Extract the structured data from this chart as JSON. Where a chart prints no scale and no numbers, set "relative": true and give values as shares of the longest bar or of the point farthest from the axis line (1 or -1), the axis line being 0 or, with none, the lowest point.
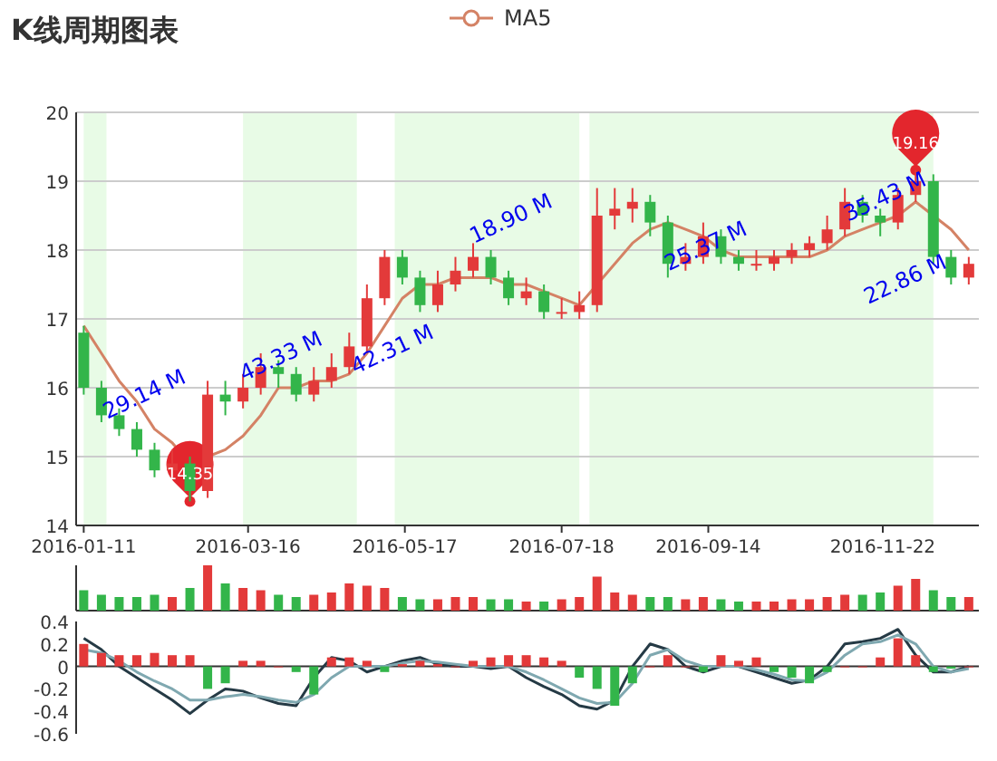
{
  "chart_data": [
    {
      "type": "candlestick",
      "title": "K线周期图表",
      "legend": "top",
      "grid": "y",
      "x": [
        "2016-01-11",
        "2016-01-18",
        "2016-01-25",
        "2016-02-01",
        "2016-02-08",
        "2016-02-15",
        "2016-02-22",
        "2016-02-29",
        "2016-03-07",
        "2016-03-14",
        "2016-03-21",
        "2016-03-28",
        "2016-04-04",
        "2016-04-11",
        "2016-04-18",
        "2016-04-25",
        "2016-05-02",
        "2016-05-09",
        "2016-05-16",
        "2016-05-23",
        "2016-05-30",
        "2016-06-06",
        "2016-06-13",
        "2016-06-20",
        "2016-06-27",
        "2016-07-04",
        "2016-07-11",
        "2016-07-18",
        "2016-07-25",
        "2016-08-01",
        "2016-08-08",
        "2016-08-15",
        "2016-08-22",
        "2016-08-29",
        "2016-09-05",
        "2016-09-12",
        "2016-09-19",
        "2016-09-26",
        "2016-10-03",
        "2016-10-10",
        "2016-10-17",
        "2016-10-24",
        "2016-10-31",
        "2016-11-07",
        "2016-11-14",
        "2016-11-21",
        "2016-11-28",
        "2016-12-05",
        "2016-12-12",
        "2016-12-19",
        "2016-12-26"
      ],
      "ohlc": [
        [
          16.8,
          16.9,
          15.9,
          16.0
        ],
        [
          16.0,
          16.1,
          15.5,
          15.6
        ],
        [
          15.6,
          15.7,
          15.3,
          15.4
        ],
        [
          15.4,
          15.5,
          15.0,
          15.1
        ],
        [
          15.1,
          15.2,
          14.7,
          14.8
        ],
        [
          14.8,
          15.1,
          14.7,
          14.9
        ],
        [
          14.9,
          15.0,
          14.35,
          14.5
        ],
        [
          14.5,
          16.1,
          14.4,
          15.9
        ],
        [
          15.9,
          16.1,
          15.6,
          15.8
        ],
        [
          15.8,
          16.2,
          15.7,
          16.0
        ],
        [
          16.0,
          16.5,
          15.9,
          16.3
        ],
        [
          16.3,
          16.4,
          16.0,
          16.2
        ],
        [
          16.2,
          16.3,
          15.8,
          15.9
        ],
        [
          15.9,
          16.3,
          15.8,
          16.1
        ],
        [
          16.1,
          16.5,
          16.0,
          16.3
        ],
        [
          16.3,
          16.8,
          16.2,
          16.6
        ],
        [
          16.6,
          17.5,
          16.5,
          17.3
        ],
        [
          17.3,
          18.0,
          17.2,
          17.9
        ],
        [
          17.9,
          18.0,
          17.5,
          17.6
        ],
        [
          17.6,
          17.7,
          17.1,
          17.2
        ],
        [
          17.2,
          17.7,
          17.1,
          17.5
        ],
        [
          17.5,
          17.9,
          17.4,
          17.7
        ],
        [
          17.7,
          18.1,
          17.6,
          17.9
        ],
        [
          17.9,
          18.0,
          17.5,
          17.6
        ],
        [
          17.6,
          17.7,
          17.2,
          17.3
        ],
        [
          17.3,
          17.6,
          17.2,
          17.4
        ],
        [
          17.4,
          17.5,
          17.0,
          17.1
        ],
        [
          17.1,
          17.3,
          17.0,
          17.1
        ],
        [
          17.1,
          17.4,
          17.0,
          17.2
        ],
        [
          17.2,
          18.9,
          17.1,
          18.5
        ],
        [
          18.5,
          18.9,
          18.3,
          18.6
        ],
        [
          18.6,
          18.9,
          18.4,
          18.7
        ],
        [
          18.7,
          18.8,
          18.2,
          18.4
        ],
        [
          18.4,
          18.5,
          17.6,
          17.8
        ],
        [
          17.8,
          18.1,
          17.7,
          17.9
        ],
        [
          17.9,
          18.4,
          17.8,
          18.2
        ],
        [
          18.2,
          18.3,
          17.8,
          17.9
        ],
        [
          17.9,
          18.0,
          17.7,
          17.8
        ],
        [
          17.8,
          18.0,
          17.7,
          17.8
        ],
        [
          17.8,
          18.0,
          17.7,
          17.9
        ],
        [
          17.9,
          18.1,
          17.8,
          18.0
        ],
        [
          18.0,
          18.2,
          17.9,
          18.1
        ],
        [
          18.1,
          18.5,
          18.0,
          18.3
        ],
        [
          18.3,
          18.9,
          18.2,
          18.7
        ],
        [
          18.7,
          18.8,
          18.4,
          18.5
        ],
        [
          18.5,
          18.6,
          18.2,
          18.4
        ],
        [
          18.4,
          18.9,
          18.3,
          18.8
        ],
        [
          18.8,
          19.16,
          18.7,
          19.0
        ],
        [
          19.0,
          19.1,
          17.8,
          17.9
        ],
        [
          17.9,
          18.0,
          17.5,
          17.6
        ],
        [
          17.6,
          17.9,
          17.5,
          17.8
        ]
      ],
      "series": [
        {
          "name": "MA5",
          "type": "line",
          "color": "#d48265",
          "values": [
            16.9,
            16.5,
            16.1,
            15.8,
            15.4,
            15.2,
            14.9,
            15.0,
            15.1,
            15.3,
            15.6,
            16.0,
            16.0,
            16.1,
            16.1,
            16.2,
            16.5,
            16.9,
            17.3,
            17.5,
            17.5,
            17.6,
            17.6,
            17.6,
            17.5,
            17.5,
            17.4,
            17.3,
            17.2,
            17.5,
            17.8,
            18.1,
            18.3,
            18.4,
            18.3,
            18.2,
            18.0,
            17.9,
            17.9,
            17.9,
            17.9,
            17.9,
            18.0,
            18.2,
            18.3,
            18.4,
            18.5,
            18.7,
            18.5,
            18.3,
            18.0
          ]
        },
        {
          "type": "scatter",
          "color": "#e3262d",
          "x": [
            "2016-02-22",
            "2016-12-05"
          ],
          "values": [
            14.35,
            19.16
          ],
          "value_labels": [
            "14.35",
            "19.16"
          ]
        }
      ],
      "xlim": [
        "2016-01-08",
        "2016-12-30"
      ],
      "xticks": [
        "2016-01-11",
        "2016-03-16",
        "2016-05-17",
        "2016-07-18",
        "2016-09-14",
        "2016-11-22"
      ],
      "ylim": [
        14,
        20
      ],
      "yticks": [
        14,
        15,
        16,
        17,
        18,
        19,
        20
      ],
      "bands": [
        {
          "axis": "x",
          "from": "2016-01-11",
          "to": "2016-01-20",
          "color": "#e8fbe6"
        },
        {
          "axis": "x",
          "from": "2016-03-14",
          "to": "2016-04-28",
          "color": "#e8fbe6"
        },
        {
          "axis": "x",
          "from": "2016-05-13",
          "to": "2016-07-25",
          "color": "#e8fbe6"
        },
        {
          "axis": "x",
          "from": "2016-07-29",
          "to": "2016-12-12",
          "color": "#e8fbe6"
        }
      ],
      "annotations": [
        {
          "text": "29.14 M",
          "x": "2016-01-20",
          "y": 15.45
        },
        {
          "text": "43.33 M",
          "x": "2016-03-14",
          "y": 16.0
        },
        {
          "text": "42.31 M",
          "x": "2016-04-27",
          "y": 16.1
        },
        {
          "text": "18.90 M",
          "x": "2016-06-13",
          "y": 18.0
        },
        {
          "text": "25.37 M",
          "x": "2016-08-29",
          "y": 17.6
        },
        {
          "text": "35.43 M",
          "x": "2016-12-12",
          "y": 18.9
        },
        {
          "text": "22.86 M",
          "x": "2016-12-20",
          "y": 17.7
        }
      ]
    },
    {
      "type": "bar",
      "relative": true,
      "tick_labels": false,
      "x": [
        "2016-01-11",
        "2016-01-18",
        "2016-01-25",
        "2016-02-01",
        "2016-02-08",
        "2016-02-15",
        "2016-02-22",
        "2016-02-29",
        "2016-03-07",
        "2016-03-14",
        "2016-03-21",
        "2016-03-28",
        "2016-04-04",
        "2016-04-11",
        "2016-04-18",
        "2016-04-25",
        "2016-05-02",
        "2016-05-09",
        "2016-05-16",
        "2016-05-23",
        "2016-05-30",
        "2016-06-06",
        "2016-06-13",
        "2016-06-20",
        "2016-06-27",
        "2016-07-04",
        "2016-07-11",
        "2016-07-18",
        "2016-07-25",
        "2016-08-01",
        "2016-08-08",
        "2016-08-15",
        "2016-08-22",
        "2016-08-29",
        "2016-09-05",
        "2016-09-12",
        "2016-09-19",
        "2016-09-26",
        "2016-10-03",
        "2016-10-10",
        "2016-10-17",
        "2016-10-24",
        "2016-10-31",
        "2016-11-07",
        "2016-11-14",
        "2016-11-21",
        "2016-11-28",
        "2016-12-05",
        "2016-12-12",
        "2016-12-19",
        "2016-12-26"
      ],
      "xlim": [
        "2016-01-08",
        "2016-12-30"
      ],
      "values": [
        0.45,
        0.35,
        0.3,
        0.3,
        0.35,
        0.3,
        0.5,
        1.0,
        0.6,
        0.5,
        0.45,
        0.35,
        0.3,
        0.35,
        0.4,
        0.6,
        0.55,
        0.5,
        0.3,
        0.25,
        0.25,
        0.3,
        0.3,
        0.25,
        0.25,
        0.2,
        0.2,
        0.25,
        0.3,
        0.75,
        0.4,
        0.35,
        0.3,
        0.3,
        0.25,
        0.3,
        0.25,
        0.2,
        0.2,
        0.2,
        0.25,
        0.25,
        0.3,
        0.35,
        0.35,
        0.4,
        0.55,
        0.7,
        0.45,
        0.3,
        0.3
      ],
      "colors": [
        "#33b54a",
        "#33b54a",
        "#33b54a",
        "#33b54a",
        "#33b54a",
        "#e33a3a",
        "#33b54a",
        "#e33a3a",
        "#33b54a",
        "#e33a3a",
        "#e33a3a",
        "#33b54a",
        "#33b54a",
        "#e33a3a",
        "#e33a3a",
        "#e33a3a",
        "#e33a3a",
        "#e33a3a",
        "#33b54a",
        "#33b54a",
        "#e33a3a",
        "#e33a3a",
        "#e33a3a",
        "#33b54a",
        "#33b54a",
        "#e33a3a",
        "#33b54a",
        "#e33a3a",
        "#e33a3a",
        "#e33a3a",
        "#e33a3a",
        "#e33a3a",
        "#33b54a",
        "#33b54a",
        "#e33a3a",
        "#e33a3a",
        "#33b54a",
        "#33b54a",
        "#e33a3a",
        "#e33a3a",
        "#e33a3a",
        "#e33a3a",
        "#e33a3a",
        "#e33a3a",
        "#33b54a",
        "#33b54a",
        "#e33a3a",
        "#e33a3a",
        "#33b54a",
        "#33b54a",
        "#e33a3a"
      ]
    },
    {
      "type": "bar",
      "tick_labels": "y",
      "x": [
        "2016-01-11",
        "2016-01-18",
        "2016-01-25",
        "2016-02-01",
        "2016-02-08",
        "2016-02-15",
        "2016-02-22",
        "2016-02-29",
        "2016-03-07",
        "2016-03-14",
        "2016-03-21",
        "2016-03-28",
        "2016-04-04",
        "2016-04-11",
        "2016-04-18",
        "2016-04-25",
        "2016-05-02",
        "2016-05-09",
        "2016-05-16",
        "2016-05-23",
        "2016-05-30",
        "2016-06-06",
        "2016-06-13",
        "2016-06-20",
        "2016-06-27",
        "2016-07-04",
        "2016-07-11",
        "2016-07-18",
        "2016-07-25",
        "2016-08-01",
        "2016-08-08",
        "2016-08-15",
        "2016-08-22",
        "2016-08-29",
        "2016-09-05",
        "2016-09-12",
        "2016-09-19",
        "2016-09-26",
        "2016-10-03",
        "2016-10-10",
        "2016-10-17",
        "2016-10-24",
        "2016-10-31",
        "2016-11-07",
        "2016-11-14",
        "2016-11-21",
        "2016-11-28",
        "2016-12-05",
        "2016-12-12",
        "2016-12-19",
        "2016-12-26"
      ],
      "xlim": [
        "2016-01-08",
        "2016-12-30"
      ],
      "ylim": [
        -0.6,
        0.4
      ],
      "yticks": [
        -0.6,
        -0.4,
        -0.2,
        0,
        0.2,
        0.4
      ],
      "series": [
        {
          "type": "bar",
          "values": [
            0.2,
            0.12,
            0.1,
            0.1,
            0.12,
            0.1,
            0.1,
            -0.2,
            -0.15,
            0.05,
            0.05,
            0.0,
            -0.05,
            -0.25,
            0.08,
            0.08,
            0.05,
            -0.05,
            0.02,
            0.05,
            0.02,
            0.0,
            0.05,
            0.08,
            0.1,
            0.1,
            0.08,
            0.05,
            -0.1,
            -0.2,
            -0.35,
            -0.15,
            0.0,
            0.1,
            0.0,
            -0.05,
            0.1,
            0.05,
            0.08,
            -0.05,
            -0.1,
            -0.15,
            -0.05,
            0.0,
            0.0,
            0.08,
            0.25,
            0.1,
            -0.05,
            -0.02,
            0.0
          ],
          "colors": [
            "#e33a3a",
            "#e33a3a",
            "#e33a3a",
            "#e33a3a",
            "#e33a3a",
            "#e33a3a",
            "#e33a3a",
            "#33b54a",
            "#33b54a",
            "#e33a3a",
            "#e33a3a",
            "#e33a3a",
            "#33b54a",
            "#33b54a",
            "#e33a3a",
            "#e33a3a",
            "#e33a3a",
            "#33b54a",
            "#e33a3a",
            "#e33a3a",
            "#e33a3a",
            "#e33a3a",
            "#e33a3a",
            "#e33a3a",
            "#e33a3a",
            "#e33a3a",
            "#e33a3a",
            "#e33a3a",
            "#33b54a",
            "#33b54a",
            "#33b54a",
            "#33b54a",
            "#e33a3a",
            "#e33a3a",
            "#e33a3a",
            "#33b54a",
            "#e33a3a",
            "#e33a3a",
            "#e33a3a",
            "#33b54a",
            "#33b54a",
            "#33b54a",
            "#33b54a",
            "#e33a3a",
            "#e33a3a",
            "#e33a3a",
            "#e33a3a",
            "#e33a3a",
            "#33b54a",
            "#33b54a",
            "#e33a3a"
          ]
        },
        {
          "type": "line",
          "color": "#253a45",
          "values": [
            0.25,
            0.15,
            0.0,
            -0.1,
            -0.2,
            -0.3,
            -0.42,
            -0.3,
            -0.2,
            -0.22,
            -0.28,
            -0.33,
            -0.35,
            -0.1,
            0.08,
            0.05,
            -0.05,
            0.0,
            0.05,
            0.08,
            0.02,
            0.0,
            0.0,
            -0.02,
            0.0,
            -0.1,
            -0.18,
            -0.25,
            -0.35,
            -0.38,
            -0.3,
            0.0,
            0.2,
            0.15,
            0.0,
            -0.05,
            0.0,
            0.0,
            -0.05,
            -0.1,
            -0.15,
            -0.12,
            0.0,
            0.2,
            0.22,
            0.25,
            0.33,
            0.1,
            -0.05,
            -0.05,
            0.0
          ]
        },
        {
          "type": "line",
          "color": "#7fa8b0",
          "values": [
            0.15,
            0.12,
            0.05,
            -0.05,
            -0.13,
            -0.2,
            -0.3,
            -0.3,
            -0.27,
            -0.25,
            -0.27,
            -0.3,
            -0.32,
            -0.25,
            -0.1,
            0.0,
            0.0,
            0.0,
            0.03,
            0.05,
            0.04,
            0.02,
            0.0,
            0.0,
            0.0,
            -0.05,
            -0.12,
            -0.2,
            -0.28,
            -0.33,
            -0.32,
            -0.15,
            0.1,
            0.15,
            0.05,
            0.0,
            0.0,
            0.0,
            -0.03,
            -0.07,
            -0.12,
            -0.13,
            -0.05,
            0.1,
            0.2,
            0.22,
            0.28,
            0.2,
            0.0,
            -0.05,
            -0.02
          ]
        }
      ]
    }
  ]
}
